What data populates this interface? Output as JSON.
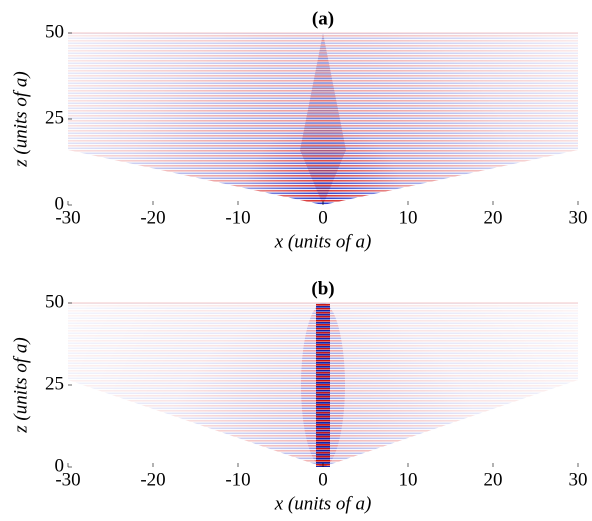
{
  "chart_data": [
    {
      "type": "heatmap",
      "title": "(a)",
      "xlabel": "x (units of a)",
      "ylabel": "z (units of a)",
      "xlim": [
        -30,
        30
      ],
      "ylim": [
        0,
        50
      ],
      "xticks": [
        -30,
        -20,
        -10,
        0,
        10,
        20,
        30
      ],
      "yticks": [
        0,
        25,
        50
      ]
    },
    {
      "type": "heatmap",
      "title": "(b)",
      "xlabel": "x (units of a)",
      "ylabel": "z (units of a)",
      "xlim": [
        -30,
        30
      ],
      "ylim": [
        0,
        50
      ],
      "xticks": [
        -30,
        -20,
        -10,
        0,
        10,
        20,
        30
      ],
      "yticks": [
        0,
        25,
        50
      ]
    }
  ]
}
